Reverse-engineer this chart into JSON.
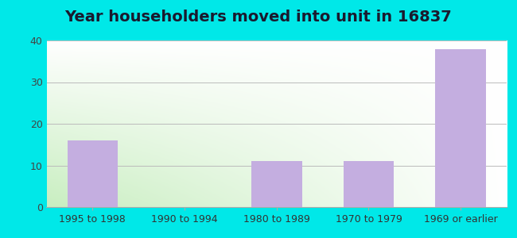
{
  "title": "Year householders moved into unit in 16837",
  "categories": [
    "1995 to 1998",
    "1990 to 1994",
    "1980 to 1989",
    "1970 to 1979",
    "1969 or earlier"
  ],
  "values": [
    16,
    0,
    11,
    11,
    38
  ],
  "bar_color": "#c4aee0",
  "ylim": [
    0,
    40
  ],
  "yticks": [
    0,
    10,
    20,
    30,
    40
  ],
  "background_outer": "#00e8e8",
  "grad_bottom_left": "#c8eec0",
  "grad_top_right": "#ffffff",
  "title_fontsize": 14,
  "tick_fontsize": 9
}
